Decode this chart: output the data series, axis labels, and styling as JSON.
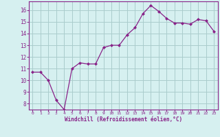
{
  "x": [
    0,
    1,
    2,
    3,
    4,
    5,
    6,
    7,
    8,
    9,
    10,
    11,
    12,
    13,
    14,
    15,
    16,
    17,
    18,
    19,
    20,
    21,
    22,
    23
  ],
  "y": [
    10.7,
    10.7,
    10.0,
    8.3,
    7.5,
    11.0,
    11.5,
    11.4,
    11.4,
    12.8,
    13.0,
    13.0,
    13.9,
    14.5,
    15.7,
    16.4,
    15.9,
    15.3,
    14.9,
    14.9,
    14.8,
    15.2,
    15.1,
    14.2
  ],
  "line_color": "#882288",
  "marker": "D",
  "marker_color": "#882288",
  "bg_color": "#d6f0f0",
  "grid_color": "#aacccc",
  "tick_color": "#882288",
  "label_color": "#882288",
  "xlabel": "Windchill (Refroidissement éolien,°C)",
  "xlim": [
    -0.5,
    23.5
  ],
  "ylim": [
    7.5,
    16.75
  ],
  "yticks": [
    8,
    9,
    10,
    11,
    12,
    13,
    14,
    15,
    16
  ],
  "xticks": [
    0,
    1,
    2,
    3,
    4,
    5,
    6,
    7,
    8,
    9,
    10,
    11,
    12,
    13,
    14,
    15,
    16,
    17,
    18,
    19,
    20,
    21,
    22,
    23
  ]
}
